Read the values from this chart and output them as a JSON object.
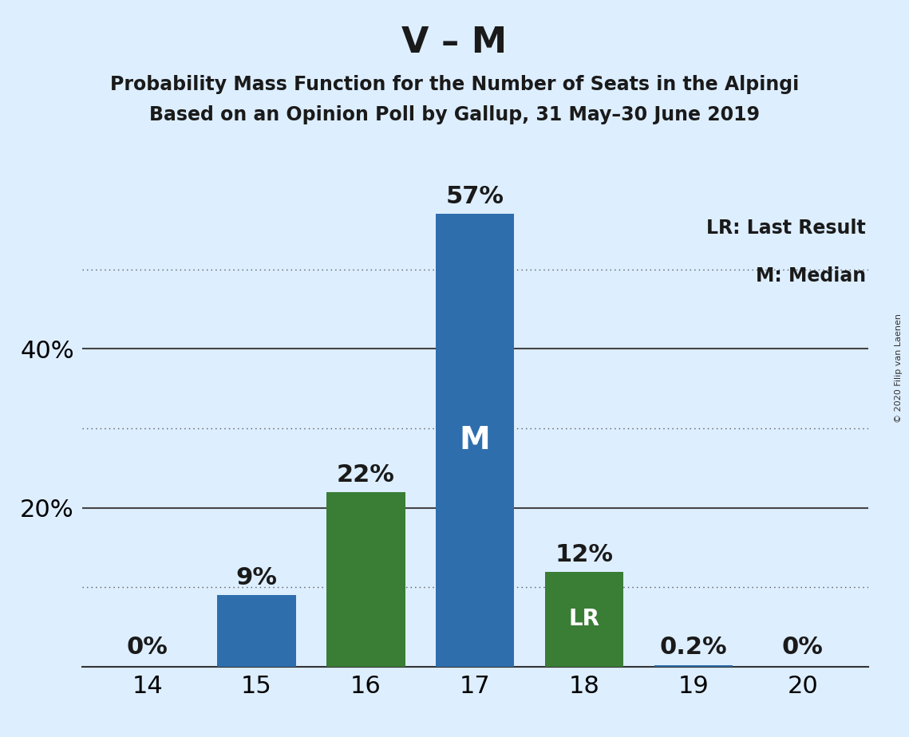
{
  "title_main": "V – M",
  "subtitle1": "Probability Mass Function for the Number of Seats in the Alpingi",
  "subtitle2": "Based on an Opinion Poll by Gallup, 31 May–30 June 2019",
  "copyright": "© 2020 Filip van Laenen",
  "legend_lr": "LR: Last Result",
  "legend_m": "M: Median",
  "seats": [
    14,
    15,
    16,
    17,
    18,
    19,
    20
  ],
  "values": [
    0.0,
    9.0,
    22.0,
    57.0,
    12.0,
    0.2,
    0.0
  ],
  "bar_colors": [
    "#2E6EAD",
    "#2E6EAD",
    "#3A7D35",
    "#2E6EAD",
    "#3A7D35",
    "#2E6EAD",
    "#2E6EAD"
  ],
  "labels": [
    "0%",
    "9%",
    "22%",
    "57%",
    "12%",
    "0.2%",
    "0%"
  ],
  "median_seat": 17,
  "lr_seat": 18,
  "median_label": "M",
  "lr_label": "LR",
  "background_color": "#ddeeff",
  "ylim_max": 63,
  "yticks": [
    20,
    40
  ],
  "ytick_labels": [
    "20%",
    "40%"
  ],
  "dotted_lines": [
    10,
    30,
    50
  ],
  "solid_lines": [
    20,
    40
  ],
  "title_fontsize": 32,
  "subtitle_fontsize": 17,
  "axis_fontsize": 22,
  "bar_label_fontsize": 22,
  "legend_fontsize": 17,
  "inside_label_m_fontsize": 28,
  "inside_label_lr_fontsize": 20,
  "bar_width": 0.72
}
